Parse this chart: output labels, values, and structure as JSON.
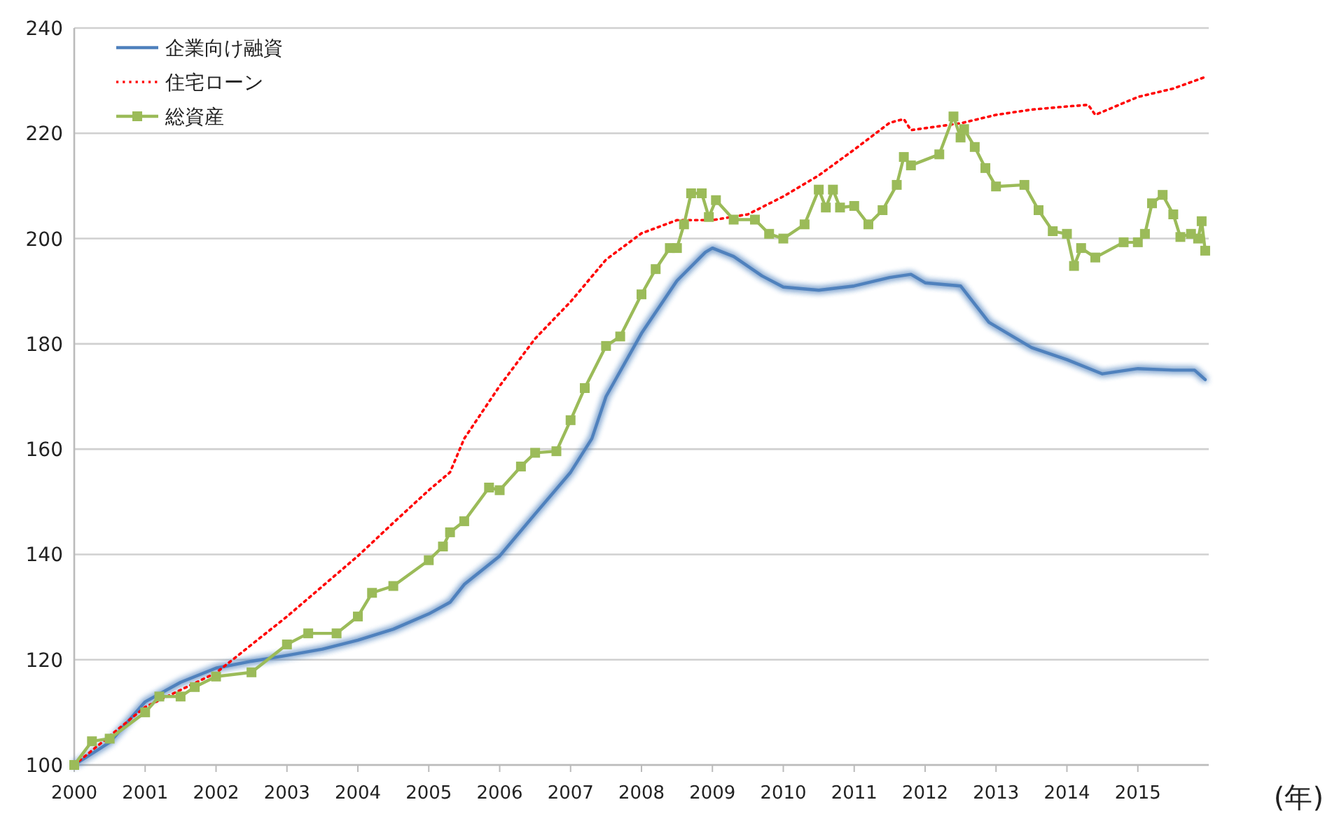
{
  "chart_data": {
    "type": "line",
    "xlabel": "(年)",
    "xlim": [
      2000,
      2016
    ],
    "xticks": [
      2000,
      2001,
      2002,
      2003,
      2004,
      2005,
      2006,
      2007,
      2008,
      2009,
      2010,
      2011,
      2012,
      2013,
      2014,
      2015
    ],
    "ylim": [
      100,
      240
    ],
    "yticks": [
      100,
      120,
      140,
      160,
      180,
      200,
      220,
      240
    ],
    "grid": "y",
    "legend": "top left",
    "series": [
      {
        "name": "企業向け融資",
        "color": "#4f81bd",
        "line_style": "solid",
        "marker": "none",
        "x": [
          2000,
          2000.5,
          2001,
          2001.5,
          2002,
          2002.5,
          2003,
          2003.5,
          2004,
          2004.5,
          2005,
          2005.3,
          2005.5,
          2006,
          2006.5,
          2007,
          2007.3,
          2007.5,
          2008,
          2008.5,
          2008.9,
          2009,
          2009.3,
          2009.7,
          2010,
          2010.5,
          2011,
          2011.5,
          2011.8,
          2012,
          2012.5,
          2012.9,
          2013.5,
          2014,
          2014.5,
          2015,
          2015.5,
          2015.8,
          2015.95
        ],
        "values": [
          100,
          104.3,
          112,
          115.7,
          118.4,
          119.7,
          120.8,
          122,
          123.7,
          125.8,
          128.7,
          130.9,
          134.3,
          139.7,
          147.7,
          155.6,
          162,
          170,
          182,
          192,
          197.4,
          198.2,
          196.6,
          192.9,
          190.8,
          190.2,
          191,
          192.6,
          193.2,
          191.6,
          191,
          184.1,
          179.3,
          177,
          174.3,
          175.3,
          175,
          175,
          173.2
        ]
      },
      {
        "name": "住宅ローン",
        "color": "#ff0000",
        "line_style": "dotted",
        "marker": "none",
        "x": [
          2000,
          2001,
          2002,
          2003,
          2004,
          2004.5,
          2005,
          2005.3,
          2005.5,
          2006,
          2006.5,
          2007,
          2007.5,
          2008,
          2008.5,
          2009,
          2009.5,
          2010,
          2010.5,
          2011,
          2011.5,
          2011.7,
          2011.8,
          2012.5,
          2013,
          2013.5,
          2014,
          2014.3,
          2014.4,
          2015,
          2015.5,
          2015.95
        ],
        "values": [
          100,
          111,
          117.5,
          128.2,
          139.7,
          146,
          152.2,
          155.6,
          162,
          172,
          181,
          188,
          196,
          201,
          203.5,
          203.5,
          204.6,
          208,
          212,
          216.9,
          222,
          222.7,
          220.6,
          221.9,
          223.5,
          224.5,
          225.1,
          225.4,
          223.5,
          226.9,
          228.5,
          230.7
        ]
      },
      {
        "name": "総資産",
        "color": "#9bbb59",
        "line_style": "solid",
        "marker": "square",
        "x": [
          2000,
          2000.25,
          2000.5,
          2001,
          2001.2,
          2001.5,
          2001.7,
          2002,
          2002.5,
          2003,
          2003.3,
          2003.7,
          2004,
          2004.2,
          2004.5,
          2005,
          2005.2,
          2005.3,
          2005.5,
          2005.85,
          2006,
          2006.3,
          2006.5,
          2006.8,
          2007,
          2007.2,
          2007.5,
          2007.7,
          2008,
          2008.2,
          2008.4,
          2008.5,
          2008.6,
          2008.7,
          2008.85,
          2008.95,
          2009.05,
          2009.3,
          2009.6,
          2009.8,
          2010,
          2010.3,
          2010.5,
          2010.6,
          2010.7,
          2010.8,
          2011,
          2011.2,
          2011.4,
          2011.6,
          2011.7,
          2011.8,
          2012.2,
          2012.4,
          2012.5,
          2012.55,
          2012.7,
          2012.85,
          2013,
          2013.4,
          2013.6,
          2013.8,
          2014,
          2014.1,
          2014.2,
          2014.4,
          2014.8,
          2015,
          2015.1,
          2015.2,
          2015.35,
          2015.5,
          2015.6,
          2015.75,
          2015.85,
          2015.9,
          2015.95
        ],
        "values": [
          100,
          104.5,
          105,
          110,
          113,
          113,
          114.8,
          116.8,
          117.6,
          122.9,
          125,
          125,
          128.2,
          132.7,
          134,
          138.9,
          141.5,
          144.2,
          146.3,
          152.7,
          152.2,
          156.7,
          159.3,
          159.6,
          165.5,
          171.6,
          179.6,
          181.4,
          189.4,
          194.2,
          198.2,
          198.2,
          202.7,
          208.6,
          208.6,
          204.1,
          207.3,
          203.6,
          203.6,
          200.9,
          200,
          202.7,
          209.3,
          205.9,
          209.3,
          205.9,
          206.2,
          202.7,
          205.4,
          210.2,
          215.5,
          213.9,
          216,
          223.2,
          219.2,
          220.8,
          217.4,
          213.4,
          209.9,
          210.2,
          205.4,
          201.4,
          200.9,
          194.8,
          198.2,
          196.4,
          199.3,
          199.3,
          200.9,
          206.7,
          208.3,
          204.6,
          200.3,
          200.9,
          200,
          203.3,
          197.7
        ]
      }
    ]
  }
}
